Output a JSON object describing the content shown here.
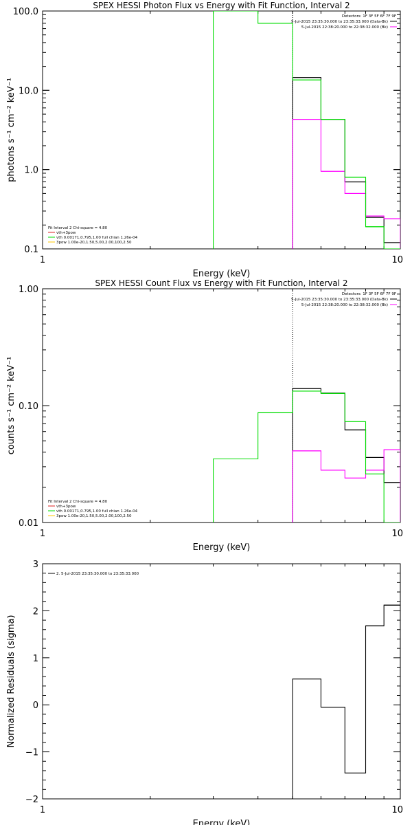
{
  "colors": {
    "data": "#000000",
    "background": "#FF00FF",
    "model": "#00DD00",
    "thick": "#FFC800",
    "thick_label": "#B8A000",
    "total": "#DD2222"
  },
  "chart_data": [
    {
      "type": "line",
      "step": true,
      "title": "SPEX HESSI Photon Flux vs Energy with Fit Function, Interval 2",
      "xlabel": "Energy (keV)",
      "ylabel": "photons s⁻¹ cm⁻² keV⁻¹",
      "xscale": "log",
      "yscale": "log",
      "xlim": [
        1,
        10
      ],
      "ylim": [
        0.1,
        100
      ],
      "x_ticks": [
        {
          "v": 1,
          "label": "1"
        },
        {
          "v": 10,
          "label": "10"
        }
      ],
      "y_ticks": [
        {
          "v": 0.1,
          "label": "0.1"
        },
        {
          "v": 1,
          "label": "1.0"
        },
        {
          "v": 10,
          "label": "10.0"
        },
        {
          "v": 100,
          "label": "100.0"
        }
      ],
      "fit_energy": 5,
      "detectors_label": "Detectors: 1F 3F 5F 6F 7F 9F",
      "legend_right": [
        {
          "text": "5-Jul-2015 23:35:30.000 to 23:35:33.000 (Data-Bk)",
          "color": "data"
        },
        {
          "text": "5-Jul-2015 22:38:20.000 to 22:38:32.000 (Bk)",
          "color": "background"
        }
      ],
      "legend_left": [
        {
          "text": "Fit Interval 2   Chi-square = 4.80",
          "color": "data",
          "line": false
        },
        {
          "text": "vth+3pow",
          "color": "total",
          "line": true
        },
        {
          "text": "vth 0.00171,0.795,1.00  full chian 1.26e-04",
          "color": "model",
          "line": true
        },
        {
          "text": "3pow 1.00e-20,1.50,5.00,2.00,100,2.50",
          "color": "thick",
          "line": true
        }
      ],
      "series": [
        {
          "color": "data",
          "bins": [
            [
              5,
              6,
              14.5
            ],
            [
              6,
              7,
              4.3
            ],
            [
              7,
              8,
              0.7
            ],
            [
              8,
              9,
              0.25
            ],
            [
              9,
              10,
              0.12
            ]
          ]
        },
        {
          "color": "background",
          "bins": [
            [
              5,
              6,
              4.3
            ],
            [
              6,
              7,
              0.95
            ],
            [
              7,
              8,
              0.5
            ],
            [
              8,
              9,
              0.26
            ],
            [
              9,
              10,
              0.24
            ]
          ]
        },
        {
          "color": "model",
          "bins": [
            [
              3,
              4,
              100
            ],
            [
              4,
              5,
              70
            ],
            [
              5,
              6,
              13.5
            ],
            [
              6,
              7,
              4.3
            ],
            [
              7,
              8,
              0.8
            ],
            [
              8,
              9,
              0.19
            ],
            [
              9,
              10,
              0.1
            ]
          ]
        }
      ]
    },
    {
      "type": "line",
      "step": true,
      "title": "SPEX HESSI Count Flux vs Energy with Fit Function, Interval 2",
      "xlabel": "Energy (keV)",
      "ylabel": "counts s⁻¹ cm⁻² keV⁻¹",
      "xscale": "log",
      "yscale": "log",
      "xlim": [
        1,
        10
      ],
      "ylim": [
        0.01,
        1
      ],
      "x_ticks": [
        {
          "v": 1,
          "label": "1"
        },
        {
          "v": 10,
          "label": "10"
        }
      ],
      "y_ticks": [
        {
          "v": 0.01,
          "label": "0.01"
        },
        {
          "v": 0.1,
          "label": "0.10"
        },
        {
          "v": 1,
          "label": "1.00"
        }
      ],
      "fit_energy": 5,
      "detectors_label": "Detectors: 1F 3F 5F 6F 7F 9F",
      "legend_right": [
        {
          "text": "5-Jul-2015 23:35:30.000 to 23:35:33.000 (Data-Bk)",
          "color": "data"
        },
        {
          "text": "5-Jul-2015 22:38:20.000 to 22:38:32.000 (Bk)",
          "color": "background"
        }
      ],
      "legend_left": [
        {
          "text": "Fit Interval 2   Chi-square = 4.80",
          "color": "data",
          "line": false
        },
        {
          "text": "vth+3pow",
          "color": "total",
          "line": true
        },
        {
          "text": "vth 0.00171,0.795,1.00  full chian 1.26e-04",
          "color": "model",
          "line": true
        },
        {
          "text": "3pow 1.00e-20,1.50,5.00,2.00,100,2.50",
          "color": "thick",
          "line": true
        }
      ],
      "series": [
        {
          "color": "data",
          "bins": [
            [
              5,
              6,
              0.14
            ],
            [
              6,
              7,
              0.128
            ],
            [
              7,
              8,
              0.062
            ],
            [
              8,
              9,
              0.036
            ],
            [
              9,
              10,
              0.022
            ]
          ]
        },
        {
          "color": "background",
          "bins": [
            [
              5,
              6,
              0.041
            ],
            [
              6,
              7,
              0.028
            ],
            [
              7,
              8,
              0.024
            ],
            [
              8,
              9,
              0.028
            ],
            [
              9,
              10,
              0.042
            ]
          ]
        },
        {
          "color": "model",
          "bins": [
            [
              3,
              4,
              0.035
            ],
            [
              4,
              5,
              0.087
            ],
            [
              5,
              6,
              0.133
            ],
            [
              6,
              7,
              0.127
            ],
            [
              7,
              8,
              0.073
            ],
            [
              8,
              9,
              0.026
            ],
            [
              9,
              10,
              0.01
            ]
          ]
        }
      ]
    },
    {
      "type": "line",
      "step": true,
      "title": "",
      "xlabel": "Energy (keV)",
      "ylabel": "Normalized Residuals (sigma)",
      "xscale": "log",
      "yscale": "linear",
      "xlim": [
        1,
        10
      ],
      "ylim": [
        -2,
        3
      ],
      "x_ticks": [
        {
          "v": 1,
          "label": "1"
        },
        {
          "v": 10,
          "label": "10"
        }
      ],
      "y_ticks": [
        {
          "v": -2,
          "label": "−2"
        },
        {
          "v": -1,
          "label": "−1"
        },
        {
          "v": 0,
          "label": "0"
        },
        {
          "v": 1,
          "label": "1"
        },
        {
          "v": 2,
          "label": "2"
        },
        {
          "v": 3,
          "label": "3"
        }
      ],
      "legend_left": [
        {
          "text": "2.  5-Jul-2015 23:35:30.000 to 23:35:33.000",
          "color": "data",
          "line": true
        }
      ],
      "series": [
        {
          "color": "data",
          "bins": [
            [
              5,
              6,
              0.55
            ],
            [
              6,
              7,
              -0.05
            ],
            [
              7,
              8,
              -1.45
            ],
            [
              8,
              9,
              1.68
            ],
            [
              9,
              10,
              2.12
            ]
          ]
        }
      ]
    }
  ]
}
